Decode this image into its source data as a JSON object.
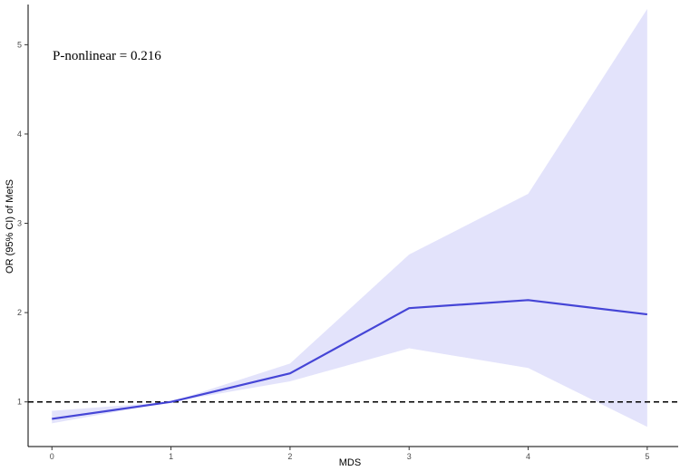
{
  "chart_data": {
    "type": "line",
    "xlabel": "MDS",
    "ylabel": "OR (95% CI) of MetS",
    "annotation": "P-nonlinear = 0.216",
    "xlim": [
      -0.2,
      5.26
    ],
    "ylim": [
      0.5,
      5.45
    ],
    "x_ticks": [
      0,
      1,
      2,
      3,
      4,
      5
    ],
    "y_ticks": [
      1,
      2,
      3,
      4,
      5
    ],
    "grid": false,
    "reference_line": {
      "y": 1,
      "style": "dashed"
    },
    "series": [
      {
        "x": [
          0,
          1,
          2,
          3,
          4,
          5
        ],
        "y": [
          0.81,
          1.0,
          1.32,
          2.05,
          2.14,
          1.98
        ],
        "ci_lower": [
          0.76,
          1.0,
          1.23,
          1.6,
          1.38,
          0.72
        ],
        "ci_upper": [
          0.9,
          1.0,
          1.43,
          2.65,
          3.33,
          5.4
        ]
      }
    ],
    "colors": {
      "line": "#4545d6",
      "band": "#e3e3fb",
      "reference": "#000000"
    }
  }
}
